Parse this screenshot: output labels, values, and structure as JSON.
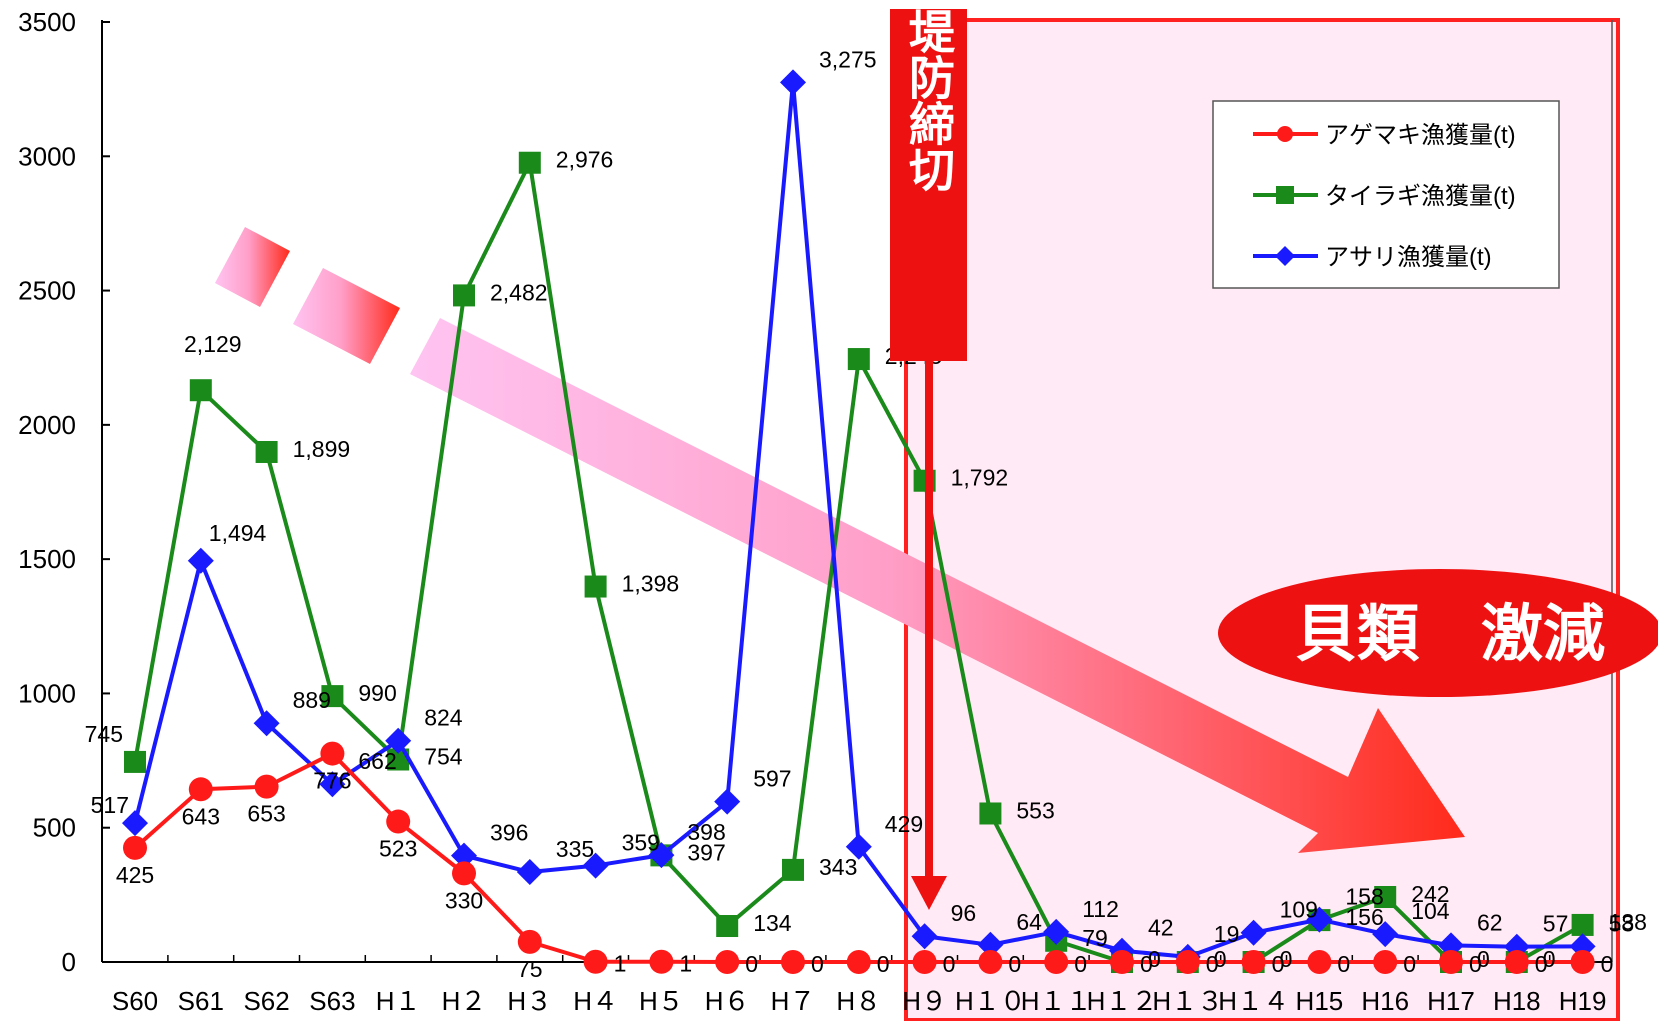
{
  "chart_data": {
    "type": "line",
    "categories": [
      "S60",
      "S61",
      "S62",
      "S63",
      "H1",
      "H2",
      "H3",
      "H4",
      "H5",
      "H6",
      "H7",
      "H8",
      "H9",
      "H10",
      "H11",
      "H12",
      "H13",
      "H14",
      "H15",
      "H16",
      "H17",
      "H18",
      "H19"
    ],
    "category_labels": [
      "S60",
      "S61",
      "S62",
      "S63",
      "H１",
      "H２",
      "H３",
      "H４",
      "H５",
      "H６",
      "H７",
      "H８",
      "H９",
      "H１０",
      "H１１",
      "H１２",
      "H１３",
      "H１４",
      "H15",
      "H16",
      "H17",
      "H18",
      "H19"
    ],
    "ylim": [
      0,
      3500
    ],
    "yticks": [
      0,
      500,
      1000,
      1500,
      2000,
      2500,
      3000,
      3500
    ],
    "grid": false,
    "legend_position": "top-right",
    "series": [
      {
        "name": "アゲマキ漁獲量(t)",
        "color": "#ff1a1a",
        "marker": "circle",
        "values": [
          425,
          643,
          653,
          776,
          523,
          330,
          75,
          1,
          1,
          0,
          0,
          0,
          0,
          0,
          0,
          0,
          0,
          0,
          0,
          0,
          0,
          0,
          0
        ],
        "labels": [
          "425",
          "643",
          "653",
          "776",
          "523",
          "330",
          "75",
          "1",
          "1",
          "0",
          "0",
          "0",
          "0",
          "0",
          "0",
          "0",
          "0",
          "0",
          "0",
          "0",
          "0",
          "0",
          "0"
        ]
      },
      {
        "name": "タイラギ漁獲量(t)",
        "color": "#1a8a1a",
        "marker": "square",
        "values": [
          745,
          2129,
          1899,
          990,
          754,
          2482,
          2976,
          1398,
          397,
          134,
          343,
          2245,
          1792,
          553,
          79,
          0,
          0,
          0,
          156,
          242,
          0,
          0,
          138
        ],
        "labels": [
          "745",
          "2,129",
          "1,899",
          "990",
          "754",
          "2,482",
          "2,976",
          "1,398",
          "397",
          "134",
          "343",
          "2,245",
          "1,792",
          "553",
          "79",
          "0",
          "0",
          "0",
          "156",
          "242",
          "0",
          "0",
          "138"
        ]
      },
      {
        "name": "アサリ漁獲量(t)",
        "color": "#1a1aff",
        "marker": "diamond",
        "values": [
          517,
          1494,
          889,
          662,
          824,
          396,
          335,
          359,
          398,
          597,
          3275,
          429,
          96,
          64,
          112,
          42,
          19,
          109,
          158,
          104,
          62,
          57,
          58
        ],
        "labels": [
          "517",
          "1,494",
          "889",
          "662",
          "824",
          "396",
          "335",
          "359",
          "398",
          "597",
          "3,275",
          "429",
          "96",
          "64",
          "112",
          "42",
          "19",
          "109",
          "158",
          "104",
          "62",
          "57",
          "58"
        ]
      }
    ],
    "annotations": {
      "closure": "諫早堤防締切",
      "decline": "貝類　激減"
    }
  }
}
